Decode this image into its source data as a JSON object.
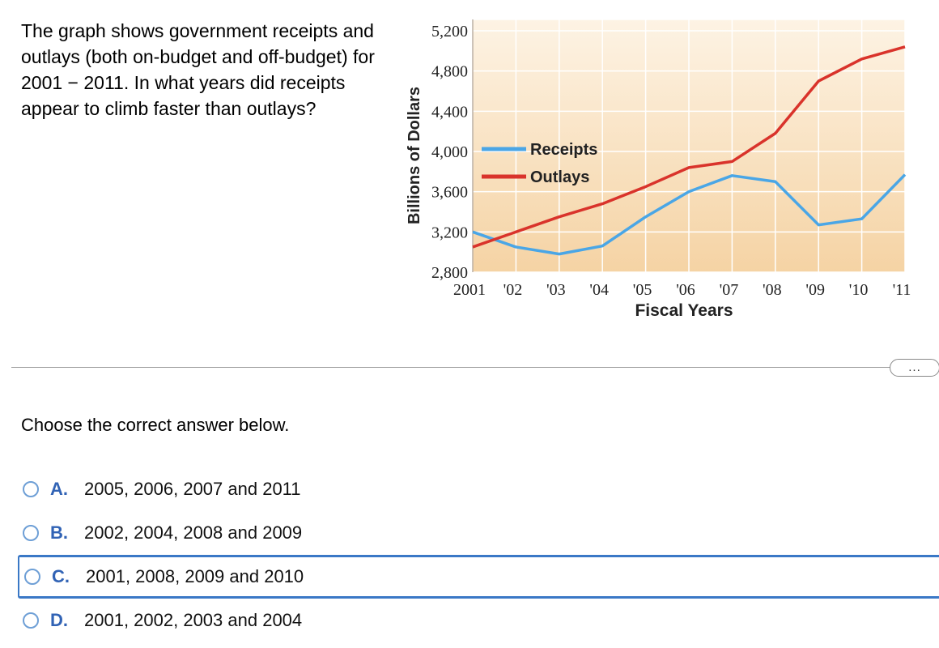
{
  "question": {
    "text": "The graph shows government receipts and outlays (both on-budget and off-budget) for 2001 − 2011. In what years did receipts appear to climb faster than outlays?"
  },
  "chart_data": {
    "type": "line",
    "xlabel": "Fiscal Years",
    "ylabel": "Billions of Dollars",
    "categories": [
      "2001",
      "'02",
      "'03",
      "'04",
      "'05",
      "'06",
      "'07",
      "'08",
      "'09",
      "'10",
      "'11"
    ],
    "yticks": [
      "5,200",
      "4,800",
      "4,400",
      "4,000",
      "3,600",
      "3,200",
      "2,800"
    ],
    "ylim": [
      2800,
      5200
    ],
    "grid": true,
    "legend_position": "center-left",
    "series": [
      {
        "name": "Receipts",
        "color": "#4aa6e6",
        "values": [
          3200,
          3050,
          2980,
          3060,
          3350,
          3600,
          3760,
          3700,
          3270,
          3330,
          3770
        ]
      },
      {
        "name": "Outlays",
        "color": "#d9332b",
        "values": [
          3050,
          3200,
          3350,
          3480,
          3650,
          3840,
          3900,
          4180,
          4700,
          4920,
          5040
        ]
      }
    ]
  },
  "more_button": {
    "label": "..."
  },
  "prompt": "Choose the correct answer below.",
  "options": [
    {
      "letter": "A.",
      "text": "2005, 2006, 2007 and 2011"
    },
    {
      "letter": "B.",
      "text": "2002, 2004, 2008 and 2009"
    },
    {
      "letter": "C.",
      "text": "2001, 2008, 2009 and 2010"
    },
    {
      "letter": "D.",
      "text": "2001, 2002, 2003 and 2004"
    }
  ],
  "selected_option": 2
}
